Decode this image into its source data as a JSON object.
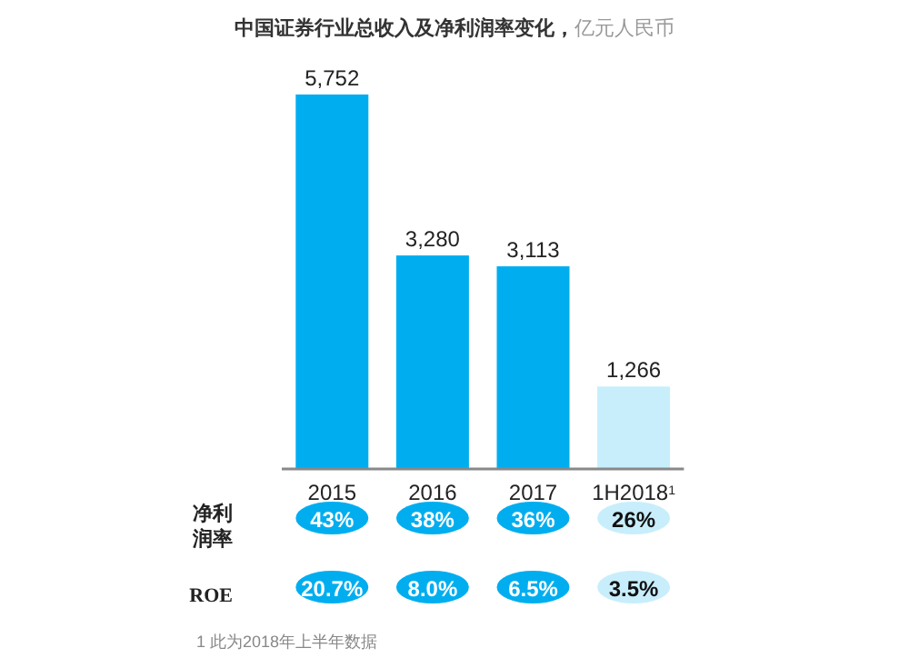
{
  "chart_data": {
    "type": "bar",
    "title": "中国证券行业总收入及净利润率变化，",
    "subtitle": "亿元人民币",
    "categories": [
      "2015",
      "2016",
      "2017",
      "1H2018$^{1}$"
    ],
    "values": [
      5752,
      3280,
      3113,
      1266
    ],
    "colors": [
      "#00aeef",
      "#00aeef",
      "#00aeef",
      "#c8eefc"
    ],
    "value_labels": [
      "5,752",
      "3,280",
      "3,113",
      "1,266"
    ],
    "annotations": [
      "净利润率",
      "43%",
      "38%",
      "36%",
      "26%",
      "ROE",
      "20.7%",
      "8.0%",
      "6.5%",
      "3.5%",
      "1 此为2018年上半年数据"
    ]
  }
}
